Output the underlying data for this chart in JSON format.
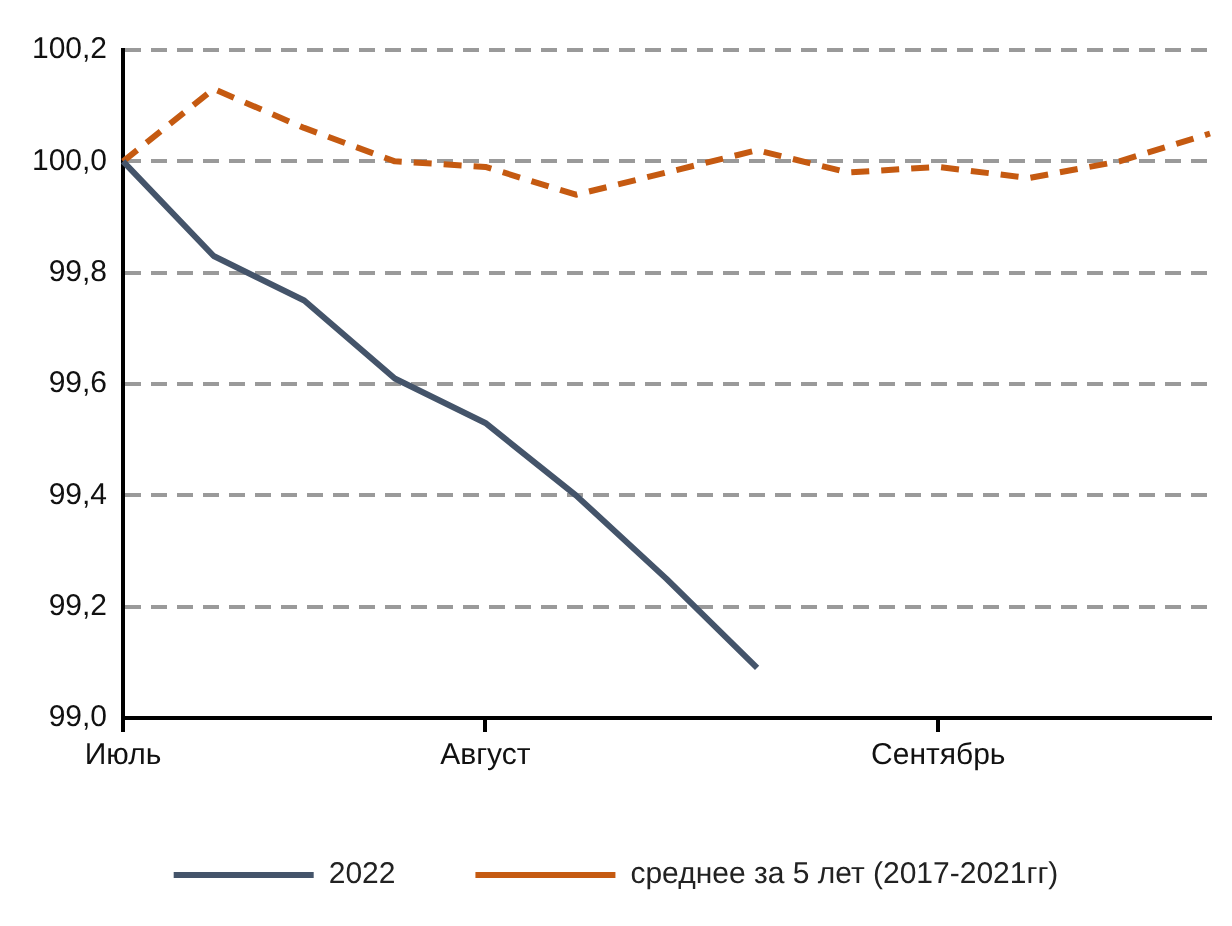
{
  "chart_data": {
    "type": "line",
    "legend": "bottom",
    "grid": "y",
    "line_style": "solid",
    "marker": "none",
    "categories": [
      "Июль",
      null,
      null,
      null,
      "Август",
      null,
      null,
      null,
      null,
      "Сентябрь",
      null,
      null,
      null
    ],
    "ylim": [
      99.0,
      100.2
    ],
    "yticks": [
      {
        "value": 99.0,
        "label": "99,0"
      },
      {
        "value": 99.2,
        "label": "99,2"
      },
      {
        "value": 99.4,
        "label": "99,4"
      },
      {
        "value": 99.6,
        "label": "99,6"
      },
      {
        "value": 99.8,
        "label": "99,8"
      },
      {
        "value": 100.0,
        "label": "100,0"
      },
      {
        "value": 100.2,
        "label": "100,2"
      }
    ],
    "series": [
      {
        "name": "2022",
        "color": "#44546a",
        "values": [
          100.0,
          99.83,
          99.75,
          99.61,
          99.53,
          99.4,
          99.25,
          99.09,
          null,
          null,
          null,
          null,
          null
        ]
      },
      {
        "name": "среднее за 5 лет (2017-2021гг)",
        "color": "#c55a11",
        "line_style": "dashed",
        "values": [
          100.0,
          100.13,
          100.06,
          100.0,
          99.99,
          99.94,
          99.98,
          100.02,
          99.98,
          99.99,
          99.97,
          100.0,
          100.05
        ]
      }
    ]
  }
}
